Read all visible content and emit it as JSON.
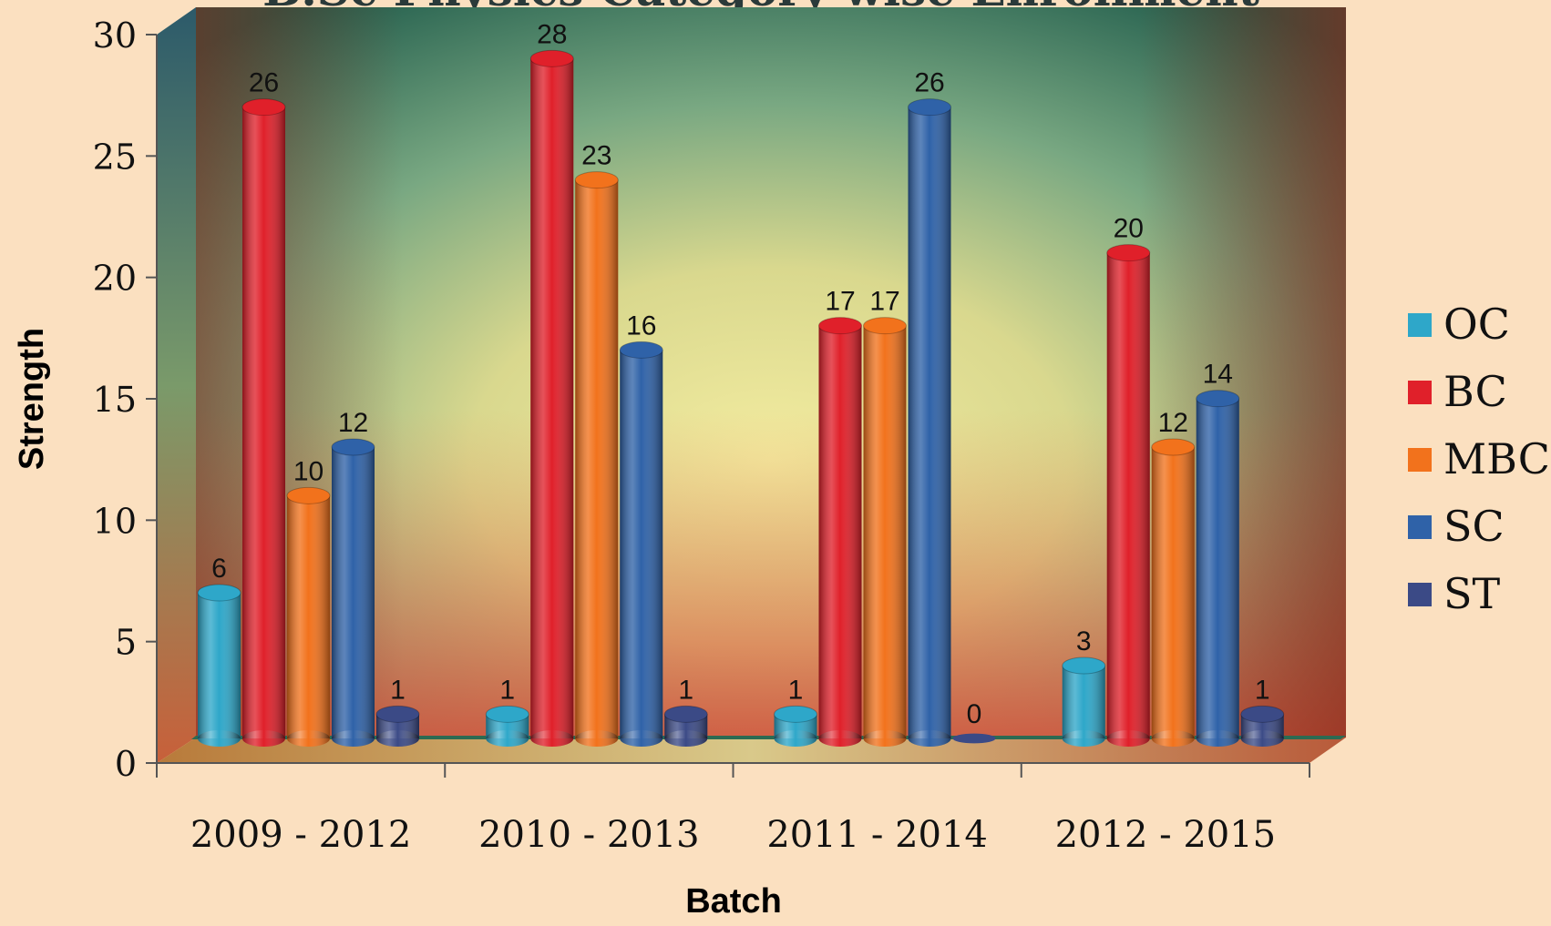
{
  "chart_data": {
    "type": "bar",
    "title": "B.Sc Physics Category wise Enrollment",
    "xlabel": "Batch",
    "ylabel": "Strength",
    "ylim": [
      0,
      30
    ],
    "yticks": [
      "0",
      "5",
      "10",
      "15",
      "20",
      "25",
      "30"
    ],
    "categories": [
      "2009 - 2012",
      "2010 - 2013",
      "2011 - 2014",
      "2012 - 2015"
    ],
    "series": [
      {
        "name": "OC",
        "color": "#2ea7c9",
        "values": [
          6,
          1,
          1,
          3
        ]
      },
      {
        "name": "BC",
        "color": "#e0202a",
        "values": [
          26,
          28,
          17,
          20
        ]
      },
      {
        "name": "MBC",
        "color": "#f2721c",
        "values": [
          10,
          23,
          17,
          12
        ]
      },
      {
        "name": "SC",
        "color": "#2f62a8",
        "values": [
          12,
          16,
          26,
          14
        ]
      },
      {
        "name": "ST",
        "color": "#3b4a86",
        "values": [
          1,
          1,
          0,
          1
        ]
      }
    ],
    "data_labels": [
      [
        "6",
        "26",
        "10",
        "12",
        "1"
      ],
      [
        "1",
        "28",
        "23",
        "16",
        "1"
      ],
      [
        "1",
        "17",
        "17",
        "26",
        "0"
      ],
      [
        "3",
        "20",
        "12",
        "14",
        "1"
      ]
    ],
    "legend_position": "right",
    "grid": false,
    "style": "3d-cylinder"
  }
}
